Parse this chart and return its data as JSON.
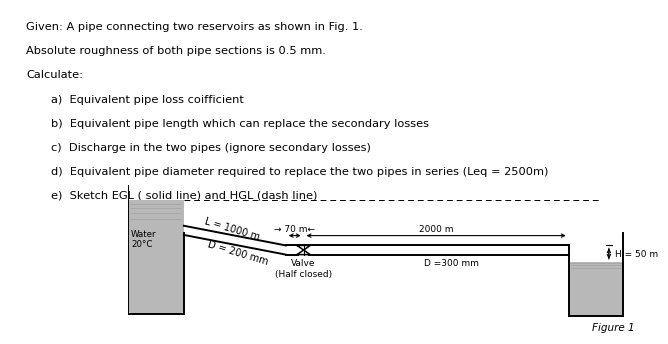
{
  "text_lines": [
    "Given: A pipe connecting two reservoirs as shown in Fig. 1.",
    "Absolute roughness of both pipe sections is 0.5 mm.",
    "Calculate:"
  ],
  "items": [
    "a)  Equivalent pipe loss coifficient",
    "b)  Equivalent pipe length which can replace the secondary losses",
    "c)  Discharge in the two pipes (ignore secondary losses)",
    "d)  Equivalent pipe diameter required to replace the two pipes in series (Leq = 2500m)",
    "e)  Sketch EGL ( solid line) and HGL (dash line)"
  ],
  "fig_label": "Figure 1",
  "label_L": "L = 1000 m",
  "label_D1": "D = 200 mm",
  "label_water": "Water\n20°C",
  "label_70m": "→ 70 m←",
  "label_2000m": "2000 m",
  "label_H": "H = 50 m",
  "label_valve": "Valve\n(Half closed)",
  "label_D2": "D =300 mm",
  "bg_color": "#ffffff",
  "water_color": "#b8b8b8"
}
